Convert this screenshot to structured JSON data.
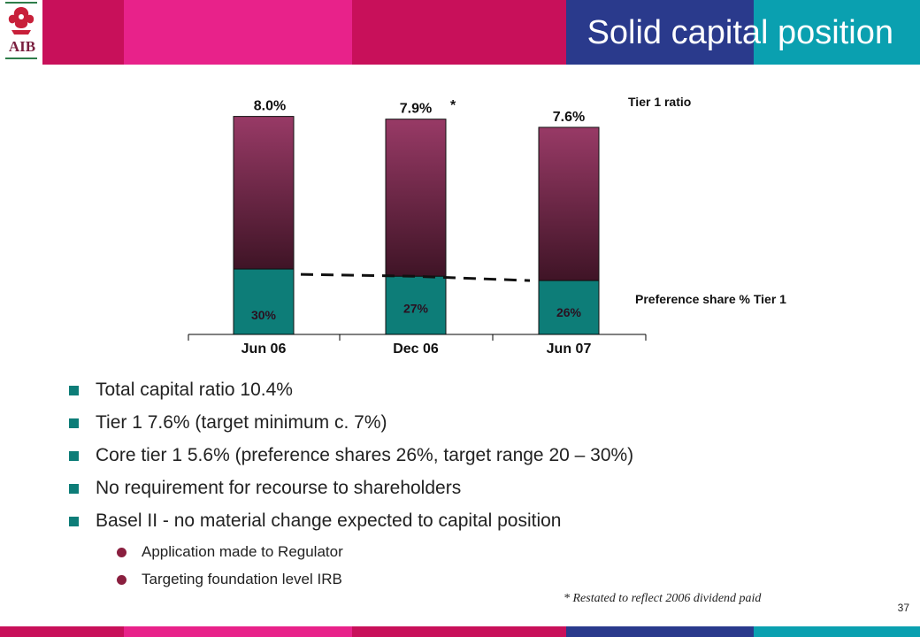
{
  "header": {
    "title": "Solid capital position",
    "logo_text": "AIB",
    "colors": [
      "#c8105a",
      "#e8228a",
      "#c8105a",
      "#e8228a",
      "#1f3a8a",
      "#0aa0b0"
    ]
  },
  "chart_data": {
    "type": "bar",
    "categories": [
      "Jun 06",
      "Dec 06",
      "Jun 07"
    ],
    "totals_labels": [
      "8.0%",
      "7.9%",
      "7.6%"
    ],
    "totals": [
      8.0,
      7.9,
      7.6
    ],
    "restated_mark": "*",
    "preference_share_pct": [
      30,
      27,
      26
    ],
    "preference_labels": [
      "30%",
      "27%",
      "26%"
    ],
    "legend_tier1": "Tier 1 ratio",
    "legend_pref": "Preference share % Tier 1",
    "trend_line": "dashed",
    "colors": {
      "tier1_top": "#983a66",
      "tier1_bottom": "#3f1426",
      "pref": "#0d7d78"
    }
  },
  "bullets": [
    {
      "level": 1,
      "text": "Total capital ratio 10.4%"
    },
    {
      "level": 1,
      "text": "Tier 1  7.6% (target minimum c. 7%)"
    },
    {
      "level": 1,
      "text": "Core tier 1  5.6% (preference shares 26%, target range 20 – 30%)"
    },
    {
      "level": 1,
      "text": "No requirement for recourse to shareholders"
    },
    {
      "level": 1,
      "text": "Basel II - no material change expected to capital position"
    },
    {
      "level": 2,
      "text": "Application made to Regulator"
    },
    {
      "level": 2,
      "text": "Targeting foundation level IRB"
    }
  ],
  "footnote": "*  Restated to reflect  2006 dividend paid",
  "page_number": "37",
  "bottom_colors": [
    "#c8105a",
    "#e8228a",
    "#c8105a",
    "#e8228a",
    "#1f3a8a",
    "#0aa0b0"
  ]
}
